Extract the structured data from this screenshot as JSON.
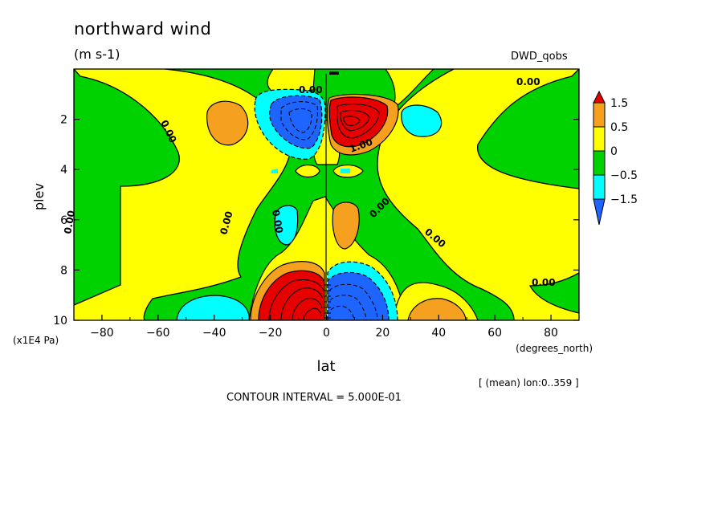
{
  "title": "northward wind",
  "units": "(m s-1)",
  "dataset": "DWD_qobs",
  "contour_interval": "CONTOUR INTERVAL = 5.000E-01",
  "lon_note": "[ (mean) lon:0..359 ]",
  "chart_data": {
    "type": "contour",
    "title": "northward wind",
    "variable_units": "(m s-1)",
    "xlabel": "lat",
    "x_units": "(degrees_north)",
    "ylabel": "plev",
    "y_units": "(x1E4 Pa)",
    "xlim": [
      -90,
      90
    ],
    "ylim": [
      10,
      0
    ],
    "x_ticks": [
      -80,
      -60,
      -40,
      -20,
      0,
      20,
      40,
      60,
      80
    ],
    "y_ticks": [
      2,
      4,
      6,
      8,
      10
    ],
    "contour_interval": 0.5,
    "contour_labels": [
      "0.00",
      "1.00"
    ],
    "colorbar": {
      "levels": [
        -1.5,
        -0.5,
        0,
        0.5,
        1.5
      ],
      "tick_labels": [
        "1.5",
        "0.5",
        "0",
        "-0.5",
        "-1.5"
      ],
      "colors": [
        "#e60000",
        "#f5a01e",
        "#ffff00",
        "#00d200",
        "#00ffff",
        "#1e64ff"
      ]
    },
    "features": [
      {
        "lat": -7,
        "plev": 9.3,
        "sign": "positive",
        "peak": 3.0
      },
      {
        "lat": 7,
        "plev": 9.3,
        "sign": "negative",
        "peak": -3.0
      },
      {
        "lat": -10,
        "plev": 2.3,
        "sign": "negative",
        "peak": -2.0
      },
      {
        "lat": 7,
        "plev": 2.3,
        "sign": "positive",
        "peak": 2.5
      },
      {
        "lat": -38,
        "plev": 2.4,
        "sign": "positive",
        "peak": 0.6
      },
      {
        "lat": 35,
        "plev": 2.4,
        "sign": "negative",
        "peak": -0.6
      },
      {
        "lat": -45,
        "plev": 9.6,
        "sign": "negative",
        "peak": -0.7
      },
      {
        "lat": 40,
        "plev": 9.6,
        "sign": "positive",
        "peak": 0.7
      },
      {
        "lat": 7,
        "plev": 6.5,
        "sign": "positive",
        "peak": 0.7
      },
      {
        "lat": -10,
        "plev": 6.5,
        "sign": "negative",
        "peak": -0.7
      }
    ]
  }
}
